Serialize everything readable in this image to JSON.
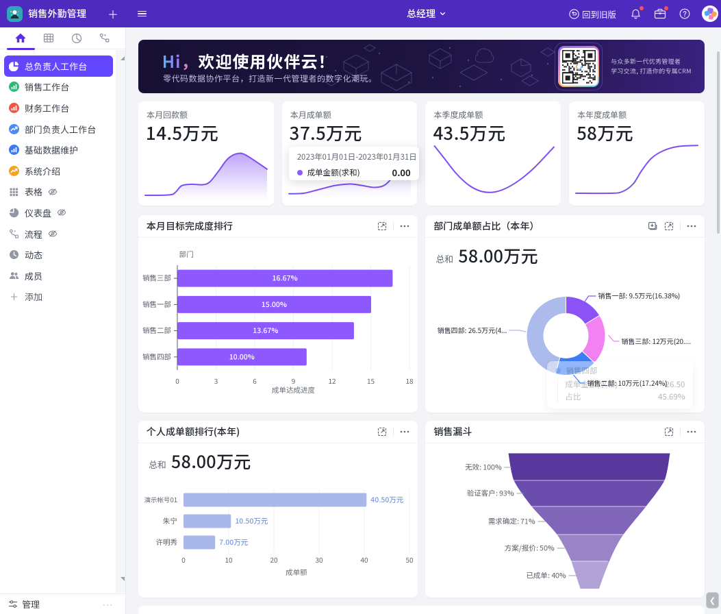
{
  "topbar": {
    "title": "销售外勤管理",
    "role": "总经理",
    "back_to_old": "回到旧版",
    "icons": [
      "back-circle-icon",
      "bell-icon",
      "briefcase-icon",
      "help-icon",
      "avatar"
    ]
  },
  "sidebar": {
    "tabs": [
      "home",
      "table",
      "clock",
      "flow"
    ],
    "items": [
      {
        "label": "总负责人工作台",
        "icon": "pie-white",
        "color": "#ffffff",
        "active": true
      },
      {
        "label": "销售工作台",
        "icon": "bars",
        "color": "#2fb876"
      },
      {
        "label": "财务工作台",
        "icon": "bars",
        "color": "#f25642"
      },
      {
        "label": "部门负责人工作台",
        "icon": "zigzag",
        "color": "#4a8cf5"
      },
      {
        "label": "基础数据维护",
        "icon": "bars",
        "color": "#3a79f0"
      },
      {
        "label": "系统介绍",
        "icon": "zigzag",
        "color": "#f7a21c"
      },
      {
        "label": "表格",
        "icon": "grid-grey",
        "eye": true
      },
      {
        "label": "仪表盘",
        "icon": "pie-grey",
        "eye": true
      },
      {
        "label": "流程",
        "icon": "flow-grey",
        "eye": true
      },
      {
        "label": "动态",
        "icon": "clock-grey"
      },
      {
        "label": "成员",
        "icon": "members-grey"
      }
    ],
    "add_label": "添加",
    "footer": {
      "label": "管理",
      "more": "···"
    }
  },
  "banner": {
    "title_hi": "Hi，",
    "title_rest": "欢迎使用伙伴云！",
    "subtitle": "零代码数据协作平台，打造新一代管理者的数字化潮玩。",
    "qr_caption_line1": "与众多新一代优秀管理者",
    "qr_caption_line2": "学习交流, 打造你的专属CRM"
  },
  "stat_cards": [
    {
      "label": "本月回款额",
      "value": "14.5万元",
      "trend": [
        [
          0,
          0.97
        ],
        [
          0.2,
          0.96
        ],
        [
          0.25,
          0.9
        ],
        [
          0.3,
          0.76
        ],
        [
          0.38,
          0.73
        ],
        [
          0.47,
          0.74
        ],
        [
          0.53,
          0.68
        ],
        [
          0.6,
          0.45
        ],
        [
          0.68,
          0.17
        ],
        [
          0.76,
          0.06
        ],
        [
          0.83,
          0.1
        ],
        [
          1,
          0.4
        ]
      ],
      "fill": true
    },
    {
      "label": "本月成单额",
      "value": "37.5万元",
      "trend": [
        [
          0,
          0.94
        ],
        [
          0.12,
          0.93
        ],
        [
          0.25,
          0.85
        ],
        [
          0.38,
          0.77
        ],
        [
          0.5,
          0.74
        ],
        [
          0.6,
          0.77
        ],
        [
          0.7,
          0.81
        ],
        [
          0.78,
          0.77
        ],
        [
          0.85,
          0.6
        ],
        [
          0.93,
          0.3
        ],
        [
          1,
          0.02
        ]
      ],
      "fill": true,
      "tooltip": {
        "period": "2023年01月01日-2023年01月31日",
        "series": "成单金额(求和)",
        "value": "0.00"
      }
    },
    {
      "label": "本季度成单额",
      "value": "43.5万元",
      "trend": [
        [
          0.02,
          0.04
        ],
        [
          0.1,
          0.28
        ],
        [
          0.2,
          0.58
        ],
        [
          0.3,
          0.8
        ],
        [
          0.4,
          0.92
        ],
        [
          0.5,
          0.94
        ],
        [
          0.6,
          0.87
        ],
        [
          0.72,
          0.7
        ],
        [
          0.84,
          0.46
        ],
        [
          1,
          0.06
        ]
      ],
      "fill": false
    },
    {
      "label": "本年度成单额",
      "value": "58万元",
      "trend": [
        [
          0,
          0.96
        ],
        [
          0.28,
          0.96
        ],
        [
          0.38,
          0.93
        ],
        [
          0.47,
          0.78
        ],
        [
          0.54,
          0.52
        ],
        [
          0.62,
          0.28
        ],
        [
          0.72,
          0.13
        ],
        [
          0.84,
          0.05
        ],
        [
          1,
          0.03
        ]
      ],
      "fill": false
    }
  ],
  "chart_data": [
    {
      "id": "dept-progress",
      "type": "bar",
      "title": "本月目标完成度排行",
      "categories": [
        "销售三部",
        "销售一部",
        "销售二部",
        "销售四部"
      ],
      "values": [
        16.67,
        15.0,
        13.67,
        10.0
      ],
      "bar_labels": [
        "16.67%",
        "15.00%",
        "13.67%",
        "10.00%"
      ],
      "xlabel": "成单达成进度",
      "ylabel": "部门",
      "xlim": [
        0,
        18
      ],
      "xticks": [
        0,
        3,
        6,
        9,
        12,
        15,
        18
      ],
      "bar_color": "#8d58fd",
      "grid": true,
      "legend": "none"
    },
    {
      "id": "dept-share",
      "type": "pie",
      "title": "部门成单额占比（本年）",
      "total_label": "总和",
      "total_value": "58.00万元",
      "segments": [
        {
          "name": "销售一部",
          "value": 9.5,
          "percent": 16.38,
          "label": "销售一部: 9.5万元(16.38%)",
          "color": "#8b52f6"
        },
        {
          "name": "销售三部",
          "value": 12,
          "percent": 20.69,
          "label": "销售三部: 12万元(20....",
          "color": "#f282f2"
        },
        {
          "name": "销售二部",
          "value": 10,
          "percent": 17.24,
          "label": "销售二部: 10万元(17.24%)",
          "color": "#3f7ef5"
        },
        {
          "name": "销售四部",
          "value": 26.5,
          "percent": 45.69,
          "label": "销售四部: 26.5万元(4...",
          "color": "#adbaec"
        }
      ],
      "tooltip": {
        "name": "销售四部",
        "rows": [
          [
            "成单金额(求和)",
            "26.50"
          ],
          [
            "占比",
            "45.69%"
          ]
        ]
      }
    },
    {
      "id": "personal-rank",
      "type": "bar",
      "title": "个人成单额排行(本年)",
      "total_label": "总和",
      "total_value": "58.00万元",
      "categories": [
        "演示帐号01",
        "朱宁",
        "许明秀"
      ],
      "values": [
        40.5,
        10.5,
        7.0
      ],
      "bar_labels": [
        "40.50万元",
        "10.50万元",
        "7.00万元"
      ],
      "xlabel": "成单额",
      "xlim": [
        0,
        50
      ],
      "xticks": [
        0,
        10,
        20,
        30,
        40,
        50
      ],
      "bar_color": "#a9b8e9",
      "value_label_color": "#7b9add",
      "grid": true,
      "legend": "none"
    },
    {
      "id": "sales-funnel",
      "type": "funnel",
      "title": "销售漏斗",
      "stages": [
        {
          "label": "无效: 100%",
          "percent": 100,
          "color": "#58389c"
        },
        {
          "label": "验证客户: 93%",
          "percent": 93,
          "color": "#6b4dad"
        },
        {
          "label": "需求确定: 71%",
          "percent": 71,
          "color": "#8165b8"
        },
        {
          "label": "方案/报价: 50%",
          "percent": 50,
          "color": "#9a83c6"
        },
        {
          "label": "已成单: 40%",
          "percent": 40,
          "color": "#b2a3d6"
        }
      ]
    }
  ],
  "colors": {
    "topbar": "#4e2abe",
    "sidebar_active": "#6347fe",
    "accent_purple": "#7e4ef2",
    "page_bg": "#f3f4f8"
  }
}
